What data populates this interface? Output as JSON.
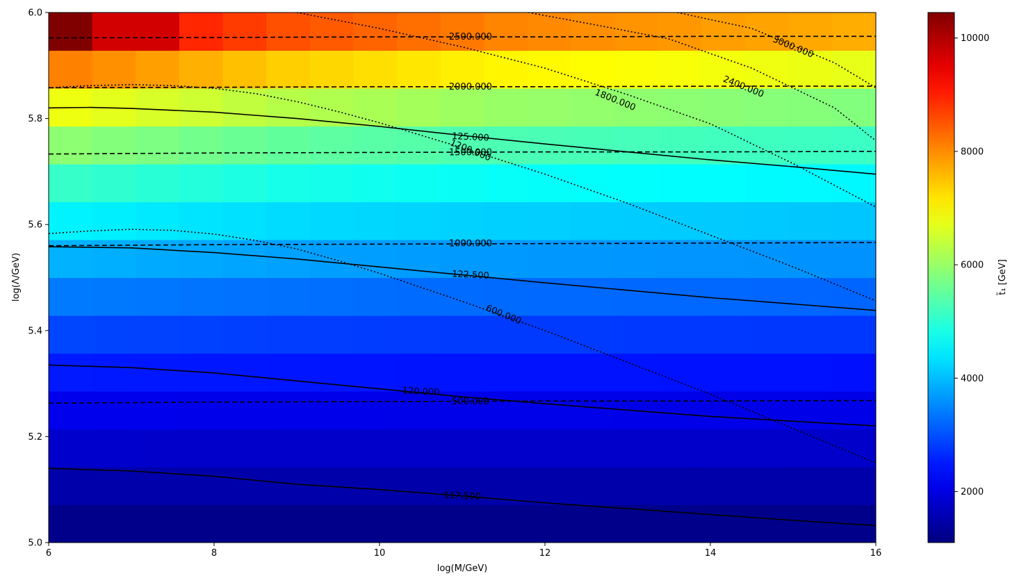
{
  "chart_data": {
    "type": "heatmap",
    "xlabel": "log(M/GeV)",
    "ylabel": "log(Λ/GeV)",
    "xlim": [
      6,
      16
    ],
    "ylim": [
      5.0,
      6.0
    ],
    "x_ticks": [
      "6",
      "8",
      "10",
      "12",
      "14",
      "16"
    ],
    "y_ticks": [
      "5.0",
      "5.2",
      "5.4",
      "5.6",
      "5.8",
      "6.0"
    ],
    "colorbar": {
      "label": "t̃₁ [GeV]",
      "colormap": "jet",
      "range": [
        1100,
        10450
      ],
      "ticks": [
        "2000",
        "4000",
        "6000",
        "8000",
        "10000"
      ],
      "tick_values": [
        2000,
        4000,
        6000,
        8000,
        10000
      ]
    },
    "grid": {
      "n_cols": 19,
      "n_rows": 14,
      "row_base_values": [
        1200,
        1500,
        1800,
        2100,
        2500,
        2900,
        3400,
        3900,
        4500,
        5100,
        5900,
        6800,
        8100,
        9500
      ],
      "col_factor_top": [
        1.0,
        0.98,
        0.96,
        0.94,
        0.92,
        0.9,
        0.89,
        0.88,
        0.87,
        0.86,
        0.85,
        0.845,
        0.84,
        0.835,
        0.83,
        0.825,
        0.82,
        0.815,
        0.81
      ]
    },
    "contour_sets": [
      {
        "style": "solid",
        "levels": [
          {
            "label": "117.500",
            "label_at": [
              11.0,
              5.088
            ],
            "label_angle": 2,
            "points": [
              [
                6,
                5.14
              ],
              [
                7,
                5.135
              ],
              [
                8,
                5.125
              ],
              [
                9,
                5.11
              ],
              [
                10,
                5.1
              ],
              [
                11,
                5.088
              ],
              [
                12,
                5.075
              ],
              [
                13,
                5.064
              ],
              [
                14,
                5.053
              ],
              [
                15,
                5.042
              ],
              [
                16,
                5.032
              ]
            ]
          },
          {
            "label": "120.000",
            "label_at": [
              10.5,
              5.285
            ],
            "label_angle": 3,
            "points": [
              [
                6,
                5.335
              ],
              [
                7,
                5.33
              ],
              [
                8,
                5.32
              ],
              [
                9,
                5.305
              ],
              [
                10,
                5.29
              ],
              [
                11,
                5.275
              ],
              [
                12,
                5.262
              ],
              [
                13,
                5.25
              ],
              [
                14,
                5.238
              ],
              [
                15,
                5.229
              ],
              [
                16,
                5.22
              ]
            ]
          },
          {
            "label": "122.500",
            "label_at": [
              11.1,
              5.505
            ],
            "label_angle": 3,
            "points": [
              [
                6,
                5.558
              ],
              [
                7,
                5.556
              ],
              [
                8,
                5.547
              ],
              [
                9,
                5.535
              ],
              [
                10,
                5.52
              ],
              [
                11,
                5.505
              ],
              [
                12,
                5.49
              ],
              [
                13,
                5.476
              ],
              [
                14,
                5.462
              ],
              [
                15,
                5.45
              ],
              [
                16,
                5.438
              ]
            ]
          },
          {
            "label": "125.000",
            "label_at": [
              11.1,
              5.765
            ],
            "label_angle": 3,
            "points": [
              [
                6,
                5.82
              ],
              [
                6.5,
                5.821
              ],
              [
                7,
                5.819
              ],
              [
                8,
                5.812
              ],
              [
                9,
                5.8
              ],
              [
                10,
                5.785
              ],
              [
                11,
                5.768
              ],
              [
                12,
                5.752
              ],
              [
                13,
                5.737
              ],
              [
                14,
                5.722
              ],
              [
                15,
                5.709
              ],
              [
                16,
                5.695
              ]
            ]
          }
        ]
      },
      {
        "style": "dashed",
        "levels": [
          {
            "label": "500.000",
            "label_at": [
              11.1,
              5.266
            ],
            "label_angle": 0,
            "points": [
              [
                6,
                5.263
              ],
              [
                8,
                5.265
              ],
              [
                10,
                5.266
              ],
              [
                12,
                5.267
              ],
              [
                14,
                5.267
              ],
              [
                16,
                5.268
              ]
            ]
          },
          {
            "label": "1000.000",
            "label_at": [
              11.1,
              5.564
            ],
            "label_angle": 0,
            "points": [
              [
                6,
                5.56
              ],
              [
                8,
                5.562
              ],
              [
                10,
                5.563
              ],
              [
                12,
                5.564
              ],
              [
                14,
                5.565
              ],
              [
                16,
                5.566
              ]
            ]
          },
          {
            "label": "1500.000",
            "label_at": [
              11.1,
              5.736
            ],
            "label_angle": 0,
            "points": [
              [
                6,
                5.733
              ],
              [
                8,
                5.735
              ],
              [
                10,
                5.736
              ],
              [
                12,
                5.737
              ],
              [
                14,
                5.737
              ],
              [
                16,
                5.738
              ]
            ]
          },
          {
            "label": "2000.000",
            "label_at": [
              11.1,
              5.86
            ],
            "label_angle": 0,
            "points": [
              [
                6,
                5.858
              ],
              [
                8,
                5.859
              ],
              [
                10,
                5.86
              ],
              [
                12,
                5.86
              ],
              [
                14,
                5.861
              ],
              [
                16,
                5.861
              ]
            ]
          },
          {
            "label": "2500.000",
            "label_at": [
              11.1,
              5.954
            ],
            "label_angle": 0,
            "points": [
              [
                6,
                5.952
              ],
              [
                8,
                5.953
              ],
              [
                10,
                5.954
              ],
              [
                12,
                5.954
              ],
              [
                14,
                5.955
              ],
              [
                16,
                5.955
              ]
            ]
          }
        ]
      },
      {
        "style": "dotted",
        "levels": [
          {
            "label": "600.000",
            "label_at": [
              11.5,
              5.43
            ],
            "label_angle": 22,
            "points": [
              [
                6,
                5.583
              ],
              [
                6.5,
                5.588
              ],
              [
                7,
                5.591
              ],
              [
                7.5,
                5.589
              ],
              [
                8,
                5.582
              ],
              [
                8.5,
                5.57
              ],
              [
                9,
                5.554
              ],
              [
                9.5,
                5.532
              ],
              [
                10,
                5.508
              ],
              [
                11,
                5.455
              ],
              [
                12,
                5.4
              ],
              [
                13,
                5.34
              ],
              [
                14,
                5.28
              ],
              [
                15,
                5.215
              ],
              [
                16,
                5.15
              ]
            ]
          },
          {
            "label": "1200.000",
            "label_at": [
              11.1,
              5.74
            ],
            "label_angle": 22,
            "points": [
              [
                6,
                5.858
              ],
              [
                6.5,
                5.862
              ],
              [
                7,
                5.864
              ],
              [
                7.5,
                5.862
              ],
              [
                8,
                5.857
              ],
              [
                8.5,
                5.847
              ],
              [
                9,
                5.832
              ],
              [
                9.5,
                5.813
              ],
              [
                10,
                5.792
              ],
              [
                11,
                5.745
              ],
              [
                12,
                5.695
              ],
              [
                13,
                5.64
              ],
              [
                14,
                5.58
              ],
              [
                15,
                5.52
              ],
              [
                16,
                5.456
              ]
            ]
          },
          {
            "label": "1800.000",
            "label_at": [
              12.85,
              5.835
            ],
            "label_angle": 22,
            "points": [
              [
                9,
                6.0
              ],
              [
                9.5,
                5.985
              ],
              [
                10,
                5.97
              ],
              [
                11,
                5.935
              ],
              [
                12,
                5.895
              ],
              [
                13,
                5.845
              ],
              [
                14,
                5.79
              ],
              [
                15,
                5.715
              ],
              [
                16,
                5.633
              ]
            ]
          },
          {
            "label": "2400.000",
            "label_at": [
              14.4,
              5.86
            ],
            "label_angle": 22,
            "points": [
              [
                11.8,
                6.0
              ],
              [
                12.5,
                5.98
              ],
              [
                13.5,
                5.95
              ],
              [
                14.5,
                5.895
              ],
              [
                15.5,
                5.82
              ],
              [
                16,
                5.758
              ]
            ]
          },
          {
            "label": "3000.000",
            "label_at": [
              15.0,
              5.935
            ],
            "label_angle": 22,
            "points": [
              [
                13.6,
                6.0
              ],
              [
                14.5,
                5.97
              ],
              [
                15.5,
                5.905
              ],
              [
                16,
                5.858
              ]
            ]
          }
        ]
      }
    ]
  }
}
